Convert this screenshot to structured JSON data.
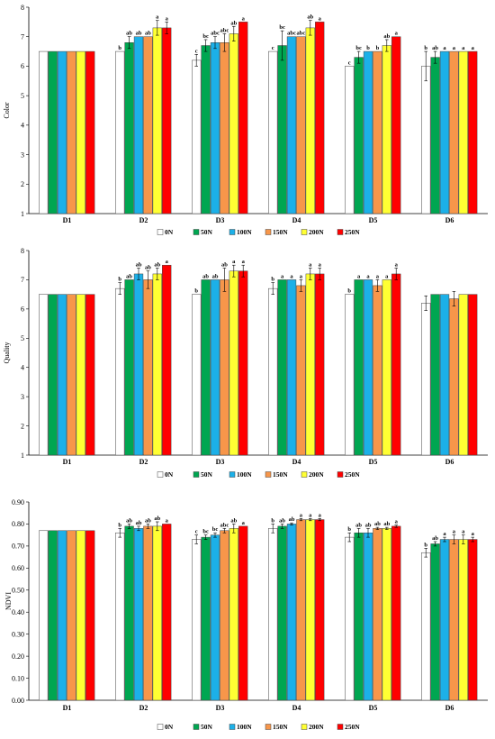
{
  "chart_data": [
    {
      "type": "bar",
      "ylabel": "Color",
      "ylim": [
        1,
        8
      ],
      "yticks": [
        "1",
        "2",
        "3",
        "4",
        "5",
        "6",
        "7",
        "8"
      ],
      "categories": [
        "D1",
        "D2",
        "D3",
        "D4",
        "D5",
        "D6"
      ],
      "legend_position": "bottom",
      "series": [
        {
          "name": "0N",
          "color": "#ffffff",
          "values": [
            6.5,
            6.5,
            6.2,
            6.5,
            6.0,
            6.0
          ],
          "errors": [
            0,
            0,
            0.2,
            0,
            0,
            0.5
          ],
          "labels": [
            "",
            "b",
            "c",
            "c",
            "c",
            "b"
          ]
        },
        {
          "name": "50N",
          "color": "#00a651",
          "values": [
            6.5,
            6.8,
            6.7,
            6.7,
            6.3,
            6.3
          ],
          "errors": [
            0,
            0.2,
            0.2,
            0.5,
            0.2,
            0.2
          ],
          "labels": [
            "",
            "ab",
            "bc",
            "bc",
            "bc",
            "ab"
          ]
        },
        {
          "name": "100N",
          "color": "#1cb0e8",
          "values": [
            6.5,
            7.0,
            6.8,
            7.0,
            6.5,
            6.5
          ],
          "errors": [
            0,
            0,
            0.2,
            0,
            0,
            0
          ],
          "labels": [
            "",
            "ab",
            "abc",
            "abc",
            "b",
            "a"
          ]
        },
        {
          "name": "150N",
          "color": "#f7964a",
          "values": [
            6.5,
            7.0,
            6.8,
            7.0,
            6.5,
            6.5
          ],
          "errors": [
            0,
            0,
            0.3,
            0,
            0,
            0
          ],
          "labels": [
            "",
            "ab",
            "abc",
            "abc",
            "b",
            "a"
          ]
        },
        {
          "name": "200N",
          "color": "#ffff33",
          "values": [
            6.5,
            7.3,
            7.1,
            7.3,
            6.7,
            6.5
          ],
          "errors": [
            0,
            0.25,
            0.25,
            0.25,
            0.2,
            0
          ],
          "labels": [
            "",
            "a",
            "ab",
            "ab",
            "ab",
            "a"
          ]
        },
        {
          "name": "250N",
          "color": "#ff0000",
          "values": [
            6.5,
            7.3,
            7.5,
            7.5,
            7.0,
            6.5
          ],
          "errors": [
            0,
            0.2,
            0,
            0,
            0,
            0
          ],
          "labels": [
            "",
            "a",
            "a",
            "a",
            "a",
            "a"
          ]
        }
      ]
    },
    {
      "type": "bar",
      "ylabel": "Quality",
      "ylim": [
        1,
        8
      ],
      "yticks": [
        "1",
        "2",
        "3",
        "4",
        "5",
        "6",
        "7",
        "8"
      ],
      "categories": [
        "D1",
        "D2",
        "D3",
        "D4",
        "D5",
        "D6"
      ],
      "legend_position": "bottom",
      "series": [
        {
          "name": "0N",
          "color": "#ffffff",
          "values": [
            6.5,
            6.7,
            6.5,
            6.7,
            6.5,
            6.2
          ],
          "errors": [
            0,
            0.2,
            0,
            0.2,
            0,
            0.25
          ],
          "labels": [
            "",
            "b",
            "b",
            "b",
            "b",
            ""
          ]
        },
        {
          "name": "50N",
          "color": "#00a651",
          "values": [
            6.5,
            7.0,
            7.0,
            7.0,
            7.0,
            6.5
          ],
          "errors": [
            0,
            0,
            0,
            0,
            0,
            0
          ],
          "labels": [
            "",
            "ab",
            "ab",
            "a",
            "a",
            ""
          ]
        },
        {
          "name": "100N",
          "color": "#1cb0e8",
          "values": [
            6.5,
            7.2,
            7.0,
            7.0,
            7.0,
            6.5
          ],
          "errors": [
            0,
            0.2,
            0,
            0,
            0,
            0
          ],
          "labels": [
            "",
            "ab",
            "ab",
            "a",
            "a",
            ""
          ]
        },
        {
          "name": "150N",
          "color": "#f7964a",
          "values": [
            6.5,
            7.0,
            7.0,
            6.8,
            6.8,
            6.35
          ],
          "errors": [
            0,
            0.3,
            0.4,
            0.2,
            0.2,
            0.25
          ],
          "labels": [
            "",
            "ab",
            "ab",
            "a",
            "a",
            ""
          ]
        },
        {
          "name": "200N",
          "color": "#ffff33",
          "values": [
            6.5,
            7.2,
            7.3,
            7.2,
            7.0,
            6.5
          ],
          "errors": [
            0,
            0.2,
            0.2,
            0.2,
            0,
            0
          ],
          "labels": [
            "",
            "ab",
            "a",
            "a",
            "a",
            ""
          ]
        },
        {
          "name": "250N",
          "color": "#ff0000",
          "values": [
            6.5,
            7.5,
            7.3,
            7.2,
            7.2,
            6.5
          ],
          "errors": [
            0,
            0,
            0.2,
            0.2,
            0.2,
            0
          ],
          "labels": [
            "",
            "a",
            "a",
            "a",
            "a",
            ""
          ]
        }
      ]
    },
    {
      "type": "bar",
      "ylabel": "NDVI",
      "ylim": [
        0,
        0.9
      ],
      "yticks": [
        "0.00",
        "0.10",
        "0.20",
        "0.30",
        "0.40",
        "0.50",
        "0.60",
        "0.70",
        "0.80",
        "0.90"
      ],
      "categories": [
        "D1",
        "D2",
        "D3",
        "D4",
        "D5",
        "D6"
      ],
      "legend_position": "bottom",
      "series": [
        {
          "name": "0N",
          "color": "#ffffff",
          "values": [
            0.77,
            0.76,
            0.73,
            0.78,
            0.74,
            0.67
          ],
          "errors": [
            0,
            0.02,
            0.02,
            0.02,
            0.02,
            0.02
          ],
          "labels": [
            "",
            "b",
            "c",
            "b",
            "b",
            "b"
          ]
        },
        {
          "name": "50N",
          "color": "#00a651",
          "values": [
            0.77,
            0.79,
            0.74,
            0.79,
            0.76,
            0.71
          ],
          "errors": [
            0,
            0.01,
            0.01,
            0.01,
            0.02,
            0.01
          ],
          "labels": [
            "",
            "ab",
            "bc",
            "ab",
            "ab",
            "ab"
          ]
        },
        {
          "name": "100N",
          "color": "#1cb0e8",
          "values": [
            0.77,
            0.78,
            0.75,
            0.8,
            0.76,
            0.73
          ],
          "errors": [
            0,
            0.01,
            0.01,
            0.005,
            0.02,
            0.01
          ],
          "labels": [
            "",
            "ab",
            "bc",
            "ab",
            "ab",
            "a"
          ]
        },
        {
          "name": "150N",
          "color": "#f7964a",
          "values": [
            0.77,
            0.79,
            0.77,
            0.82,
            0.78,
            0.73
          ],
          "errors": [
            0,
            0.01,
            0.01,
            0.005,
            0.005,
            0.02
          ],
          "labels": [
            "",
            "ab",
            "abc",
            "a",
            "ab",
            "a"
          ]
        },
        {
          "name": "200N",
          "color": "#ffff33",
          "values": [
            0.77,
            0.79,
            0.78,
            0.82,
            0.78,
            0.73
          ],
          "errors": [
            0,
            0.02,
            0.02,
            0.005,
            0.005,
            0.02
          ],
          "labels": [
            "",
            "ab",
            "ab",
            "a",
            "ab",
            "a"
          ]
        },
        {
          "name": "250N",
          "color": "#ff0000",
          "values": [
            0.77,
            0.8,
            0.79,
            0.82,
            0.79,
            0.73
          ],
          "errors": [
            0,
            0,
            0,
            0.005,
            0.005,
            0.01
          ],
          "labels": [
            "",
            "a",
            "a",
            "a",
            "a",
            "a"
          ]
        }
      ]
    }
  ]
}
